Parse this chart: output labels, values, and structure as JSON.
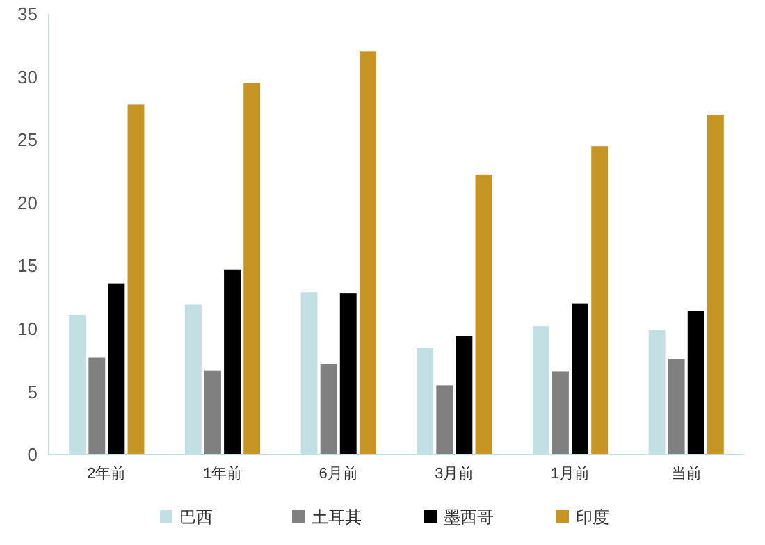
{
  "chart_data": {
    "type": "bar",
    "categories": [
      "2年前",
      "1年前",
      "6月前",
      "3月前",
      "1月前",
      "当前"
    ],
    "series": [
      {
        "name": "巴西",
        "color": "#c2dfe3",
        "values": [
          11.1,
          11.9,
          12.9,
          8.5,
          10.2,
          9.9
        ]
      },
      {
        "name": "土耳其",
        "color": "#808080",
        "values": [
          7.7,
          6.7,
          7.2,
          5.5,
          6.6,
          7.6
        ]
      },
      {
        "name": "墨西哥",
        "color": "#000000",
        "values": [
          13.6,
          14.7,
          12.8,
          9.4,
          12.0,
          11.4
        ]
      },
      {
        "name": "印度",
        "color": "#c69524",
        "values": [
          27.8,
          29.5,
          32.0,
          22.2,
          24.5,
          27.0
        ]
      }
    ],
    "ylim": [
      0,
      35
    ],
    "yticks": [
      0,
      5,
      10,
      15,
      20,
      25,
      30,
      35
    ],
    "grid": false,
    "legend": "bottom"
  }
}
